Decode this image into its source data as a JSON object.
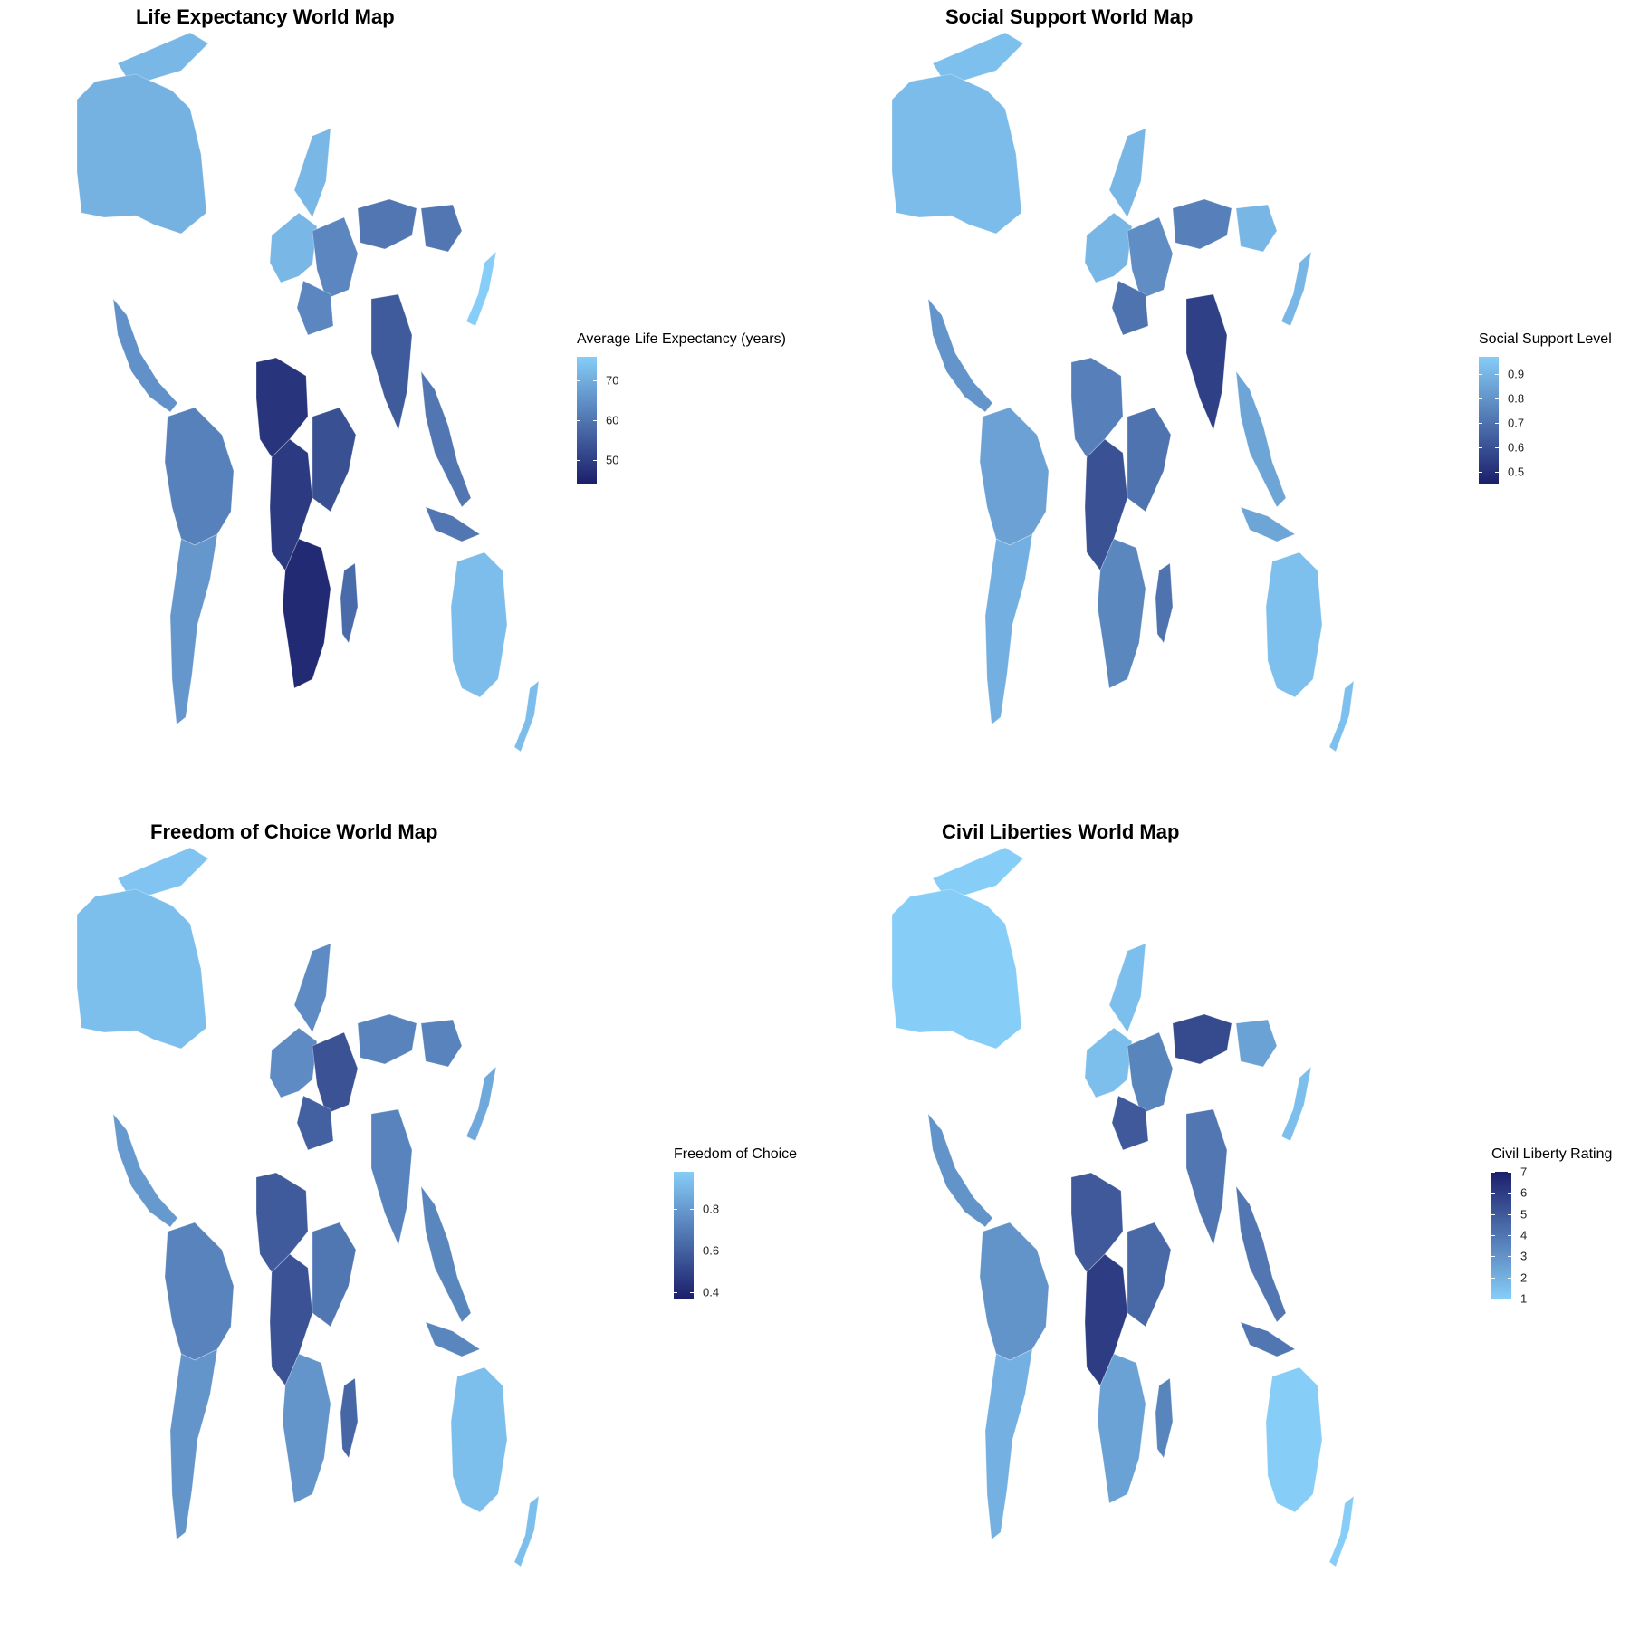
{
  "colors": {
    "low": "#1b1f6b",
    "high": "#86cdf8",
    "background": "#ffffff"
  },
  "maps": [
    {
      "title": "Life Expectancy World Map",
      "legend": {
        "title": "Average Life Expectancy (years)",
        "min": 44,
        "max": 76,
        "reverse": false,
        "ticks": [
          {
            "value": 50,
            "label": "50"
          },
          {
            "value": 60,
            "label": "60"
          },
          {
            "value": 70,
            "label": "70"
          }
        ]
      },
      "regions": {
        "north_america": 71,
        "greenland": 72,
        "europe_west": 72,
        "europe_east": 63,
        "russia": 60,
        "mongolia_china": 60,
        "japan": 76,
        "middle_east": 63,
        "south_asia": 55,
        "southeast_asia": 60,
        "central_america": 65,
        "south_america_north": 62,
        "south_america_south": 66,
        "sahel": 48,
        "central_africa": 49,
        "east_africa": 53,
        "southern_africa": 46,
        "madagascar": 58,
        "australia": 73
      }
    },
    {
      "title": "Social Support World Map",
      "legend": {
        "title": "Social Support Level",
        "min": 0.45,
        "max": 0.97,
        "reverse": false,
        "ticks": [
          {
            "value": 0.5,
            "label": "0.5"
          },
          {
            "value": 0.6,
            "label": "0.6"
          },
          {
            "value": 0.7,
            "label": "0.7"
          },
          {
            "value": 0.8,
            "label": "0.8"
          },
          {
            "value": 0.9,
            "label": "0.9"
          }
        ]
      },
      "regions": {
        "north_america": 0.92,
        "greenland": 0.93,
        "europe_west": 0.9,
        "europe_east": 0.78,
        "russia": 0.74,
        "mongolia_china": 0.9,
        "japan": 0.9,
        "middle_east": 0.7,
        "south_asia": 0.55,
        "southeast_asia": 0.85,
        "central_america": 0.8,
        "south_america_north": 0.84,
        "south_america_south": 0.88,
        "sahel": 0.74,
        "central_africa": 0.6,
        "east_africa": 0.7,
        "southern_africa": 0.76,
        "madagascar": 0.7,
        "australia": 0.93
      }
    },
    {
      "title": "Freedom of Choice World Map",
      "legend": {
        "title": "Freedom of Choice",
        "min": 0.37,
        "max": 0.98,
        "reverse": false,
        "ticks": [
          {
            "value": 0.4,
            "label": "0.4"
          },
          {
            "value": 0.6,
            "label": "0.6"
          },
          {
            "value": 0.8,
            "label": "0.8"
          }
        ]
      },
      "regions": {
        "north_america": 0.93,
        "greenland": 0.95,
        "europe_west": 0.75,
        "europe_east": 0.55,
        "russia": 0.72,
        "mongolia_china": 0.72,
        "japan": 0.85,
        "middle_east": 0.6,
        "south_asia": 0.72,
        "southeast_asia": 0.73,
        "central_america": 0.8,
        "south_america_north": 0.72,
        "south_america_south": 0.78,
        "sahel": 0.58,
        "central_africa": 0.55,
        "east_africa": 0.68,
        "southern_africa": 0.78,
        "madagascar": 0.62,
        "australia": 0.93
      }
    },
    {
      "title": "Civil Liberties World Map",
      "legend": {
        "title": "Civil Liberty Rating",
        "min": 1,
        "max": 7,
        "reverse": true,
        "ticks": [
          {
            "value": 1,
            "label": "1"
          },
          {
            "value": 2,
            "label": "2"
          },
          {
            "value": 3,
            "label": "3"
          },
          {
            "value": 4,
            "label": "4"
          },
          {
            "value": 5,
            "label": "5"
          },
          {
            "value": 6,
            "label": "6"
          },
          {
            "value": 7,
            "label": "7"
          }
        ]
      },
      "regions": {
        "north_america": 1,
        "greenland": 1,
        "europe_west": 1.5,
        "europe_east": 3.5,
        "russia": 5.5,
        "mongolia_china": 2.5,
        "japan": 1.5,
        "middle_east": 5,
        "south_asia": 4,
        "southeast_asia": 4,
        "central_america": 3,
        "south_america_north": 3,
        "south_america_south": 2,
        "sahel": 5,
        "central_africa": 6,
        "east_africa": 4.5,
        "southern_africa": 2.5,
        "madagascar": 3.5,
        "australia": 1
      }
    }
  ]
}
